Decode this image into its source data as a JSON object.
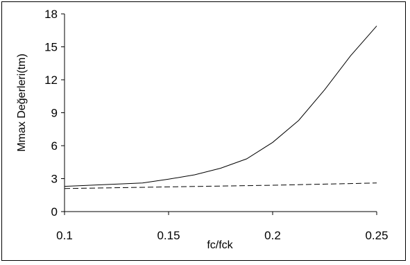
{
  "chart_data": {
    "type": "line",
    "title": "",
    "xlabel": "fc/fck",
    "ylabel": "Mmax Değerleri(tm)",
    "xlim": [
      0.1,
      0.25
    ],
    "ylim": [
      0,
      18
    ],
    "x_ticks": [
      0.1,
      0.15,
      0.2,
      0.25
    ],
    "x_tick_labels": [
      "0.1",
      "0.15",
      "0.2",
      "0.25"
    ],
    "y_ticks": [
      0,
      3,
      6,
      9,
      12,
      15,
      18
    ],
    "y_tick_labels": [
      "0",
      "3",
      "6",
      "9",
      "12",
      "15",
      "18"
    ],
    "grid": false,
    "legend": "none",
    "series": [
      {
        "style": "solid",
        "color": "#000000",
        "x": [
          0.1,
          0.1125,
          0.125,
          0.1375,
          0.15,
          0.1625,
          0.175,
          0.1875,
          0.195,
          0.2,
          0.2125,
          0.225,
          0.2375,
          0.25
        ],
        "y": [
          2.3,
          2.4,
          2.5,
          2.6,
          2.95,
          3.35,
          3.95,
          4.8,
          5.7,
          6.3,
          8.3,
          11.1,
          14.2,
          16.9
        ]
      },
      {
        "style": "dashed",
        "color": "#000000",
        "x": [
          0.1,
          0.15,
          0.2,
          0.25
        ],
        "y": [
          2.1,
          2.25,
          2.4,
          2.6
        ]
      }
    ]
  }
}
